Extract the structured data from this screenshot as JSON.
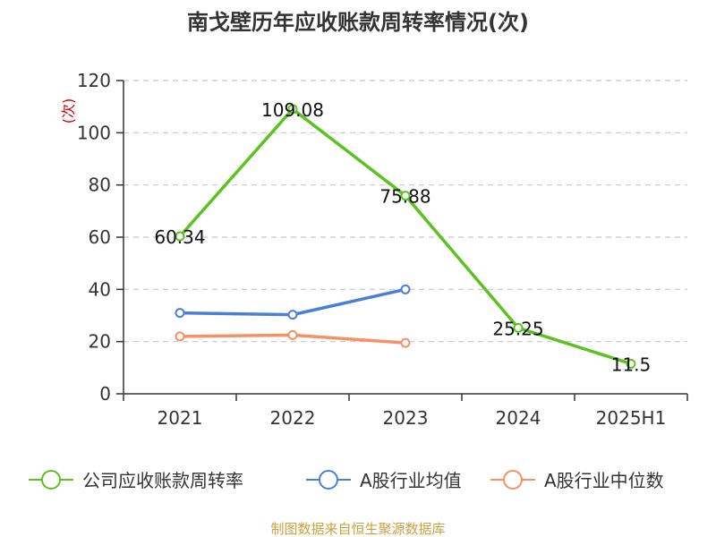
{
  "chart_data": {
    "type": "line",
    "title": "南戈壁历年应收账款周转率情况(次)",
    "ylabel": "(次)",
    "xlabel": "",
    "categories": [
      "2021",
      "2022",
      "2023",
      "2024",
      "2025H1"
    ],
    "ylim": [
      0,
      120
    ],
    "yticks": [
      0,
      20,
      40,
      60,
      80,
      100,
      120
    ],
    "grid": true,
    "legend_position": "bottom",
    "series": [
      {
        "name": "公司应收账款周转率",
        "color": "#5cc222",
        "values": [
          60.34,
          109.08,
          75.88,
          25.25,
          11.5
        ],
        "labels": [
          "60.34",
          "109.08",
          "75.88",
          "25.25",
          "11.5"
        ]
      },
      {
        "name": "A股行业均值",
        "color": "#4a7fd6",
        "values": [
          31,
          30.3,
          40,
          null,
          null
        ]
      },
      {
        "name": "A股行业中位数",
        "color": "#f59164",
        "values": [
          22,
          22.5,
          19.5,
          null,
          null
        ]
      }
    ]
  },
  "source": "制图数据来自恒生聚源数据库"
}
